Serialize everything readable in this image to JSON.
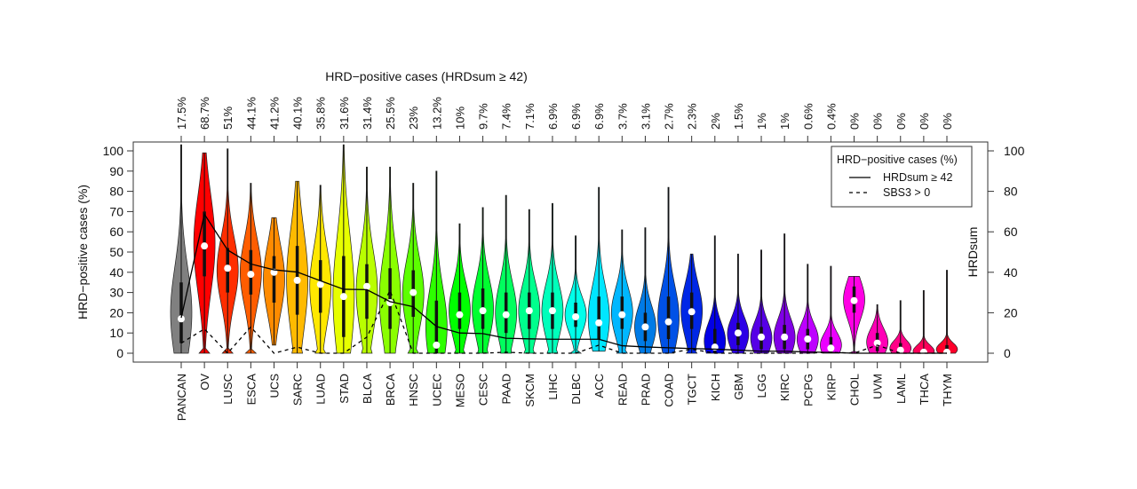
{
  "chart_data": {
    "type": "violin",
    "title": "HRD−positive cases (HRDsum  ≥ 42)",
    "ylabel_left": "HRD−positive cases (%)",
    "ylabel_right": "HRDsum",
    "ylim": [
      0,
      100
    ],
    "yticks": [
      0,
      10,
      20,
      30,
      40,
      50,
      60,
      70,
      80,
      90,
      100
    ],
    "yticks_right": [
      0,
      20,
      40,
      60,
      80,
      100
    ],
    "categories": [
      "PANCAN",
      "OV",
      "LUSC",
      "ESCA",
      "UCS",
      "SARC",
      "LUAD",
      "STAD",
      "BLCA",
      "BRCA",
      "HNSC",
      "UCEC",
      "MESO",
      "CESC",
      "PAAD",
      "SKCM",
      "LIHC",
      "DLBC",
      "ACC",
      "READ",
      "PRAD",
      "COAD",
      "TGCT",
      "KICH",
      "GBM",
      "LGG",
      "KIRC",
      "PCPG",
      "KIRP",
      "CHOL",
      "UVM",
      "LAML",
      "THCA",
      "THYM"
    ],
    "top_labels": [
      "17.5%",
      "68.7%",
      "51%",
      "44.1%",
      "41.2%",
      "40.1%",
      "35.8%",
      "31.6%",
      "31.4%",
      "25.5%",
      "23%",
      "13.2%",
      "10%",
      "9.7%",
      "7.4%",
      "7.1%",
      "6.9%",
      "6.9%",
      "6.9%",
      "3.7%",
      "3.1%",
      "2.7%",
      "2.3%",
      "2%",
      "1.5%",
      "1%",
      "1%",
      "0.6%",
      "0.4%",
      "0%",
      "0%",
      "0%",
      "0%",
      "0%"
    ],
    "series": [
      {
        "name": "HRDsum ≥ 42",
        "style": "solid",
        "values": [
          17.5,
          68.7,
          51,
          44.1,
          41.2,
          40.1,
          35.8,
          31.6,
          31.4,
          25.5,
          23,
          13.2,
          10,
          9.7,
          7.4,
          7.1,
          6.9,
          6.9,
          6.9,
          3.7,
          3.1,
          2.7,
          2.3,
          2,
          1.5,
          1,
          1,
          0.6,
          0.4,
          0,
          0,
          0,
          0,
          0
        ]
      },
      {
        "name": "SBS3 > 0",
        "style": "dashed",
        "values": [
          5,
          12,
          0,
          13,
          0,
          3,
          0,
          0,
          8,
          31,
          0,
          0,
          0,
          0,
          0.5,
          0,
          0,
          0,
          4,
          0,
          0,
          0,
          2,
          0,
          0,
          0,
          0,
          0,
          0.5,
          0,
          4,
          0,
          0,
          0
        ]
      }
    ],
    "violins": {
      "median": [
        17,
        53,
        42,
        39,
        40,
        36,
        34,
        28,
        33,
        25,
        30,
        4,
        19,
        21,
        19,
        21,
        21,
        18,
        15,
        19,
        13,
        15.5,
        20.5,
        3,
        10,
        8,
        8,
        7,
        2.5,
        26,
        5,
        1.5,
        0.5,
        0.5
      ],
      "q1": [
        5,
        38,
        30,
        29,
        25,
        19,
        20,
        8,
        17,
        12,
        18,
        0,
        12,
        12,
        10,
        12,
        12,
        13,
        7,
        12,
        6,
        7,
        12,
        0,
        4,
        2,
        2,
        2,
        0,
        20,
        1,
        0,
        0,
        0
      ],
      "q3": [
        35,
        70,
        52,
        51,
        48,
        53,
        46,
        48,
        44,
        42,
        41,
        26,
        30,
        32,
        30,
        30,
        30,
        25,
        28,
        28,
        20,
        28,
        30,
        12,
        15,
        13,
        14,
        12,
        8,
        33,
        10,
        5,
        2,
        4
      ],
      "min": [
        0,
        0,
        0,
        0,
        4,
        0,
        0,
        0,
        0,
        0,
        0,
        0,
        0,
        0,
        0,
        0,
        0,
        0,
        1,
        0,
        0,
        0,
        0,
        0,
        0,
        0,
        0,
        0,
        0,
        0,
        0,
        0,
        0,
        0
      ],
      "max": [
        103,
        99,
        101,
        84,
        67,
        85,
        83,
        103,
        92,
        92,
        84,
        90,
        64,
        72,
        78,
        71,
        74,
        58,
        82,
        61,
        62,
        82,
        49,
        58,
        49,
        51,
        59,
        44,
        43,
        38,
        24,
        26,
        31,
        41
      ]
    },
    "legend": {
      "title": "HRD−positive cases (%)",
      "position": "top-right",
      "entries": [
        "HRDsum ≥ 42",
        "SBS3 > 0"
      ]
    },
    "first_color": "#808080"
  }
}
